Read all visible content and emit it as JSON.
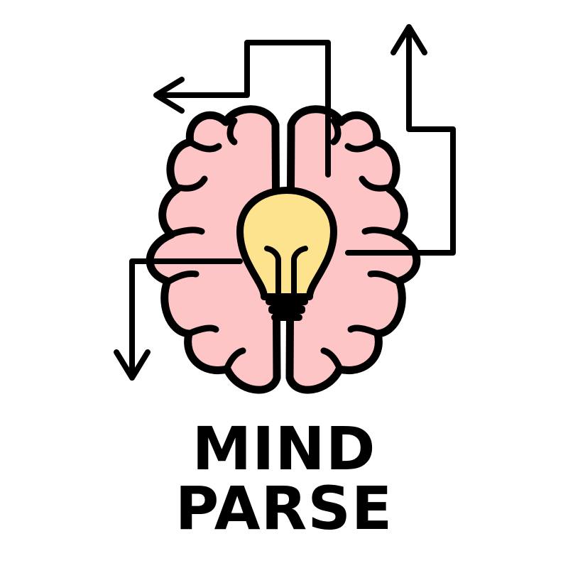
{
  "logo": {
    "icon": "brain-with-lightbulb-icon",
    "colors": {
      "brain": "#fec5c6",
      "bulb": "#fde38d",
      "outline": "#000000",
      "background": "#ffffff"
    }
  },
  "wordmark": {
    "line1": "MIND",
    "line2": "PARSE"
  }
}
